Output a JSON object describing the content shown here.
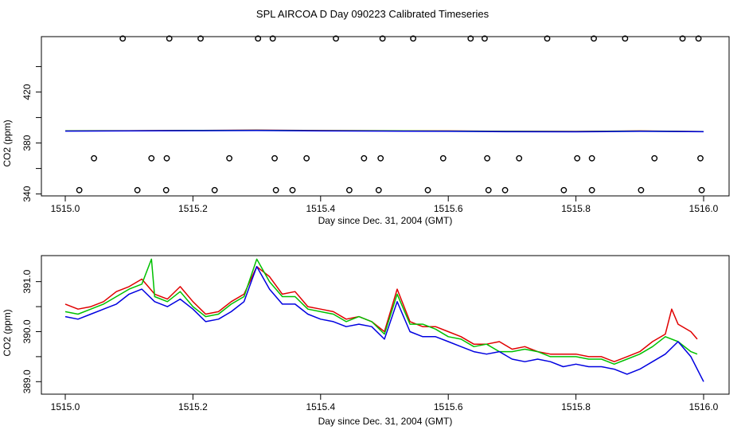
{
  "page_title": "SPL AIRCOA D  Day 090223  Calibrated Timeseries",
  "colors": {
    "axis": "#000000",
    "red": "#e00000",
    "green": "#00c000",
    "blue": "#0000e0",
    "purple": "#c000c0"
  },
  "chart_data": [
    {
      "type": "line+scatter",
      "title": "SPL AIRCOA D  Day 090223  Calibrated Timeseries",
      "xlabel": "Day since Dec. 31, 2004 (GMT)",
      "ylabel": "CO2 (ppm)",
      "xlim": [
        1515.0,
        1516.0
      ],
      "ylim": [
        338.5,
        463.5
      ],
      "xticks": [
        1515.0,
        1515.2,
        1515.4,
        1515.6,
        1515.8,
        1516.0
      ],
      "xtick_labels": [
        "1515.0",
        "1515.2",
        "1515.4",
        "1515.6",
        "1515.8",
        "1516.0"
      ],
      "yticks": [
        340,
        380,
        420
      ],
      "ytick_labels": [
        "340",
        "380",
        "420"
      ],
      "yminor_ticks": [
        360,
        400,
        440
      ],
      "markers": "open circles",
      "series": [
        {
          "name": "red",
          "color": "#e00000",
          "x": [
            1515.0,
            1515.1,
            1515.2,
            1515.3,
            1515.4,
            1515.5,
            1515.6,
            1515.7,
            1515.8,
            1515.9,
            1516.0
          ],
          "y": [
            389.6,
            389.7,
            389.9,
            390.1,
            389.8,
            389.7,
            389.5,
            389.2,
            389.1,
            389.5,
            389.0
          ]
        },
        {
          "name": "green",
          "color": "#00c000",
          "x": [
            1515.0,
            1515.1,
            1515.2,
            1515.3,
            1515.4,
            1515.5,
            1515.6,
            1515.7,
            1515.8,
            1515.9,
            1516.0
          ],
          "y": [
            389.5,
            389.6,
            389.8,
            390.0,
            389.7,
            389.6,
            389.4,
            389.1,
            389.0,
            389.4,
            389.0
          ]
        },
        {
          "name": "blue",
          "color": "#0000e0",
          "x": [
            1515.0,
            1515.1,
            1515.2,
            1515.3,
            1515.4,
            1515.5,
            1515.6,
            1515.7,
            1515.8,
            1515.9,
            1516.0
          ],
          "y": [
            389.4,
            389.5,
            389.7,
            389.8,
            389.5,
            389.4,
            389.2,
            388.9,
            388.8,
            389.2,
            388.9
          ]
        }
      ],
      "points_high": {
        "y": 462,
        "x": [
          1515.09,
          1515.163,
          1515.212,
          1515.302,
          1515.325,
          1515.424,
          1515.497,
          1515.545,
          1515.635,
          1515.657,
          1515.755,
          1515.828,
          1515.877,
          1515.967,
          1515.992
        ]
      },
      "points_mid": {
        "y": 368,
        "x": [
          1515.045,
          1515.135,
          1515.159,
          1515.257,
          1515.328,
          1515.378,
          1515.468,
          1515.494,
          1515.592,
          1515.661,
          1515.711,
          1515.802,
          1515.825,
          1515.923,
          1515.995
        ]
      },
      "points_low": {
        "y": 343,
        "x": [
          1515.022,
          1515.113,
          1515.158,
          1515.234,
          1515.33,
          1515.356,
          1515.445,
          1515.491,
          1515.568,
          1515.663,
          1515.689,
          1515.781,
          1515.825,
          1515.902,
          1515.997
        ]
      }
    },
    {
      "type": "line",
      "xlabel": "Day since Dec. 31, 2004 (GMT)",
      "ylabel": "CO2 (ppm)",
      "xlim": [
        1515.0,
        1516.0
      ],
      "ylim": [
        388.75,
        391.52
      ],
      "xticks": [
        1515.0,
        1515.2,
        1515.4,
        1515.6,
        1515.8,
        1516.0
      ],
      "xtick_labels": [
        "1515.0",
        "1515.2",
        "1515.4",
        "1515.6",
        "1515.8",
        "1516.0"
      ],
      "yticks": [
        389.0,
        390.0,
        391.0
      ],
      "ytick_labels": [
        "389.0",
        "390.0",
        "391.0"
      ],
      "yminor_ticks": [
        389.5,
        390.5
      ],
      "series": [
        {
          "name": "red",
          "color": "#e00000",
          "x": [
            1515.0,
            1515.02,
            1515.04,
            1515.06,
            1515.08,
            1515.1,
            1515.12,
            1515.14,
            1515.16,
            1515.18,
            1515.2,
            1515.22,
            1515.24,
            1515.26,
            1515.28,
            1515.3,
            1515.32,
            1515.34,
            1515.36,
            1515.38,
            1515.4,
            1515.42,
            1515.44,
            1515.46,
            1515.48,
            1515.5,
            1515.52,
            1515.54,
            1515.56,
            1515.58,
            1515.6,
            1515.62,
            1515.64,
            1515.66,
            1515.68,
            1515.7,
            1515.72,
            1515.74,
            1515.76,
            1515.78,
            1515.8,
            1515.82,
            1515.84,
            1515.86,
            1515.88,
            1515.9,
            1515.92,
            1515.94,
            1515.95,
            1515.96,
            1515.98,
            1515.99
          ],
          "y": [
            390.55,
            390.45,
            390.5,
            390.6,
            390.8,
            390.9,
            391.05,
            390.75,
            390.65,
            390.9,
            390.6,
            390.35,
            390.4,
            390.6,
            390.75,
            391.3,
            391.1,
            390.75,
            390.8,
            390.5,
            390.45,
            390.4,
            390.25,
            390.3,
            390.2,
            390.0,
            390.85,
            390.2,
            390.1,
            390.1,
            390.0,
            389.9,
            389.75,
            389.75,
            389.8,
            389.65,
            389.7,
            389.6,
            389.55,
            389.55,
            389.55,
            389.5,
            389.5,
            389.4,
            389.5,
            389.6,
            389.8,
            389.95,
            390.45,
            390.15,
            390.0,
            389.85
          ]
        },
        {
          "name": "green",
          "color": "#00c000",
          "x": [
            1515.0,
            1515.02,
            1515.04,
            1515.06,
            1515.08,
            1515.1,
            1515.12,
            1515.135,
            1515.14,
            1515.16,
            1515.18,
            1515.2,
            1515.22,
            1515.24,
            1515.26,
            1515.28,
            1515.3,
            1515.32,
            1515.34,
            1515.36,
            1515.38,
            1515.4,
            1515.42,
            1515.44,
            1515.46,
            1515.48,
            1515.5,
            1515.52,
            1515.54,
            1515.56,
            1515.58,
            1515.6,
            1515.62,
            1515.64,
            1515.66,
            1515.68,
            1515.7,
            1515.72,
            1515.74,
            1515.76,
            1515.78,
            1515.8,
            1515.82,
            1515.84,
            1515.86,
            1515.88,
            1515.9,
            1515.92,
            1515.94,
            1515.96,
            1515.98,
            1515.99
          ],
          "y": [
            390.4,
            390.35,
            390.45,
            390.55,
            390.7,
            390.85,
            390.95,
            391.45,
            390.7,
            390.6,
            390.8,
            390.5,
            390.3,
            390.35,
            390.55,
            390.7,
            391.45,
            391.0,
            390.7,
            390.7,
            390.45,
            390.4,
            390.35,
            390.2,
            390.3,
            390.2,
            389.95,
            390.75,
            390.15,
            390.15,
            390.05,
            389.9,
            389.85,
            389.7,
            389.75,
            389.6,
            389.6,
            389.65,
            389.6,
            389.5,
            389.5,
            389.5,
            389.45,
            389.45,
            389.35,
            389.45,
            389.55,
            389.7,
            389.9,
            389.8,
            389.6,
            389.55
          ]
        },
        {
          "name": "blue",
          "color": "#0000e0",
          "x": [
            1515.0,
            1515.02,
            1515.04,
            1515.06,
            1515.08,
            1515.1,
            1515.12,
            1515.14,
            1515.16,
            1515.18,
            1515.2,
            1515.22,
            1515.24,
            1515.26,
            1515.28,
            1515.3,
            1515.32,
            1515.34,
            1515.36,
            1515.38,
            1515.4,
            1515.42,
            1515.44,
            1515.46,
            1515.48,
            1515.5,
            1515.52,
            1515.54,
            1515.56,
            1515.58,
            1515.6,
            1515.62,
            1515.64,
            1515.66,
            1515.68,
            1515.7,
            1515.72,
            1515.74,
            1515.76,
            1515.78,
            1515.8,
            1515.82,
            1515.84,
            1515.86,
            1515.88,
            1515.9,
            1515.92,
            1515.94,
            1515.96,
            1515.98,
            1516.0
          ],
          "y": [
            390.3,
            390.25,
            390.35,
            390.45,
            390.55,
            390.75,
            390.85,
            390.6,
            390.5,
            390.65,
            390.45,
            390.2,
            390.25,
            390.4,
            390.6,
            391.3,
            390.85,
            390.55,
            390.55,
            390.35,
            390.25,
            390.2,
            390.1,
            390.15,
            390.1,
            389.85,
            390.6,
            390.0,
            389.9,
            389.9,
            389.8,
            389.7,
            389.6,
            389.55,
            389.6,
            389.45,
            389.4,
            389.45,
            389.4,
            389.3,
            389.35,
            389.3,
            389.3,
            389.25,
            389.15,
            389.25,
            389.4,
            389.55,
            389.8,
            389.5,
            389.0
          ]
        }
      ]
    }
  ]
}
